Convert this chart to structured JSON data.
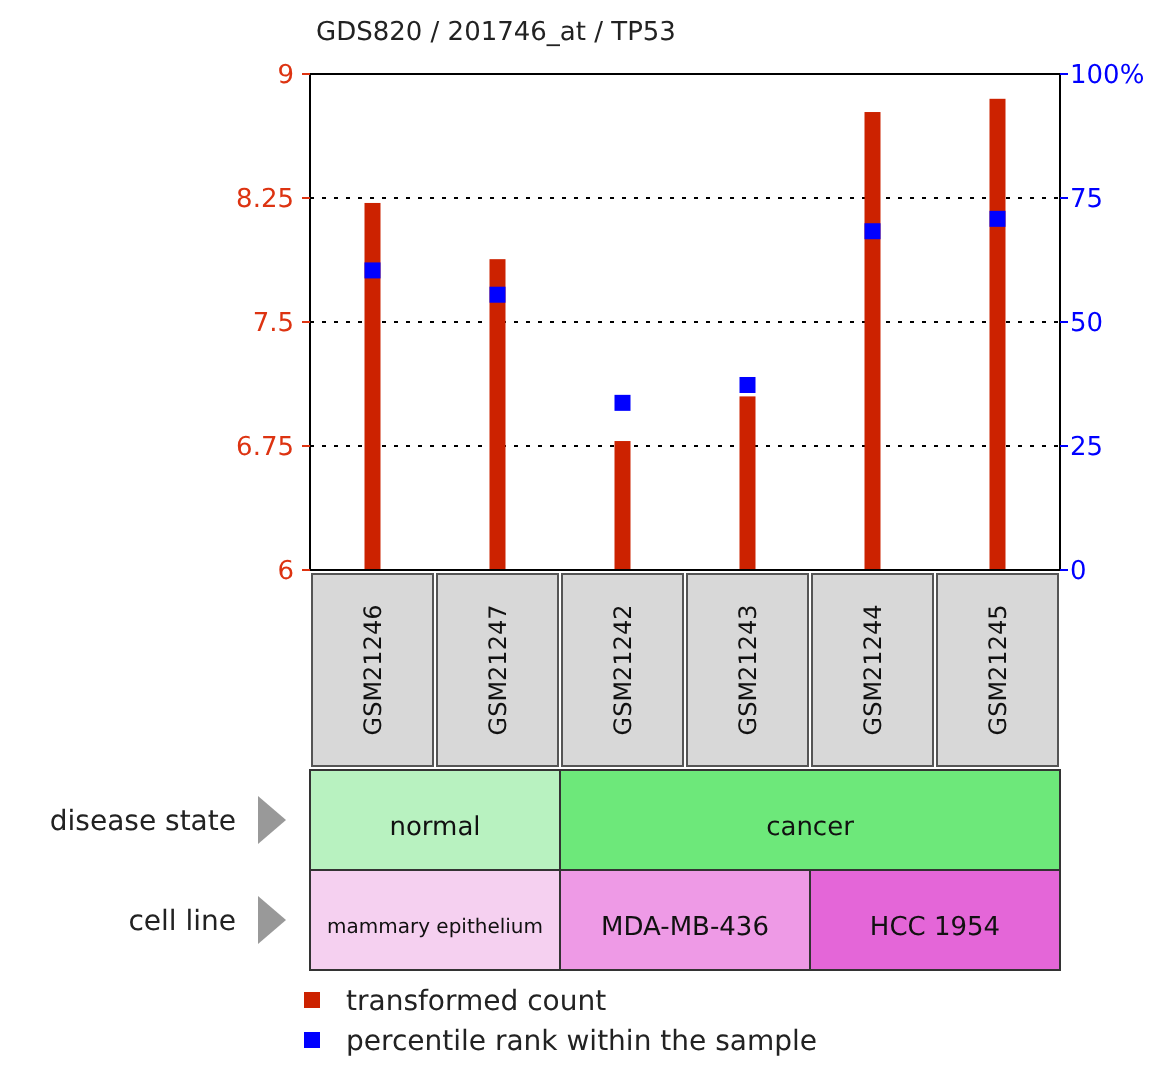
{
  "chart_data": {
    "type": "bar",
    "title": "GDS820 / 201746_at / TP53",
    "categories": [
      "GSM21246",
      "GSM21247",
      "GSM21242",
      "GSM21243",
      "GSM21244",
      "GSM21245"
    ],
    "series": [
      {
        "name": "transformed count",
        "color": "#cc2200",
        "values": [
          8.22,
          7.88,
          6.78,
          7.05,
          8.77,
          8.85
        ]
      },
      {
        "name": "percentile rank within the sample",
        "type": "scatter",
        "axis": "y2",
        "color": "#0000ff",
        "values": [
          60.4,
          55.5,
          33.7,
          37.3,
          68.3,
          70.8
        ]
      }
    ],
    "ylim": [
      6,
      9
    ],
    "yticks": [
      6,
      6.75,
      7.5,
      8.25,
      9
    ],
    "y2lim": [
      0,
      100
    ],
    "y2ticks": [
      0,
      25,
      50,
      75,
      {
        "value": 100,
        "label": "100%"
      }
    ],
    "grid": "y",
    "marker": "square",
    "legend": "bottom",
    "annotations": [
      "disease state",
      "normal",
      "cancer",
      "cell line",
      "mammary epithelium",
      "MDA-MB-436",
      "HCC 1954"
    ]
  }
}
